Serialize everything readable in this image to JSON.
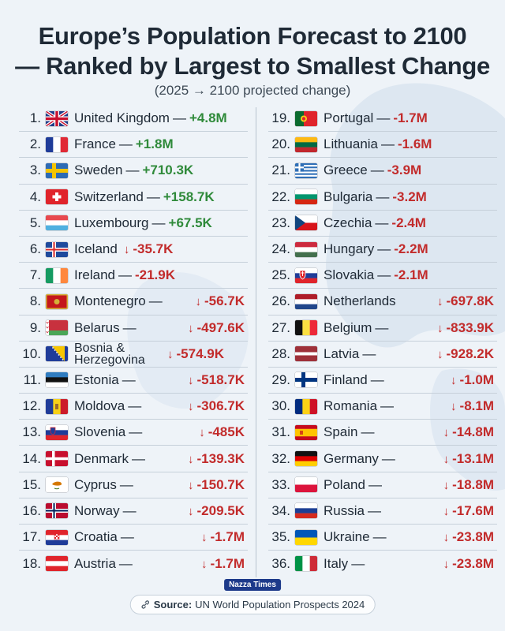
{
  "title_line1": "Europe’s Population Forecast to 2100",
  "title_line2": "— Ranked by Largest to Smallest Change",
  "subtitle": "(2025 → 2100 projected change)",
  "brand": "Nazza Times",
  "source_label": "Source:",
  "source_text": "UN World Population Prospects 2024",
  "colors": {
    "positive": "#2f8a3a",
    "negative": "#c22b2b",
    "title": "#1f2a36"
  },
  "chart_data": {
    "type": "table",
    "columns": [
      "rank",
      "country",
      "change"
    ],
    "rows": [
      {
        "rank": "1.",
        "country": "United Kingdom",
        "change": "+4.8M",
        "value": 4800000,
        "flag": "uk",
        "arrow": false,
        "sep": true
      },
      {
        "rank": "2.",
        "country": "France",
        "change": "+1.8M",
        "value": 1800000,
        "flag": "france",
        "arrow": false,
        "sep": true
      },
      {
        "rank": "3.",
        "country": "Sweden",
        "change": "+710.3K",
        "value": 710300,
        "flag": "sweden",
        "arrow": false,
        "sep": true
      },
      {
        "rank": "4.",
        "country": "Switzerland",
        "change": "+158.7K",
        "value": 158700,
        "flag": "switzerland",
        "arrow": false,
        "sep": true
      },
      {
        "rank": "5.",
        "country": "Luxembourg",
        "change": "+67.5K",
        "value": 67500,
        "flag": "luxembourg",
        "arrow": false,
        "sep": true
      },
      {
        "rank": "6.",
        "country": "Iceland",
        "change": "-35.7K",
        "value": -35700,
        "flag": "iceland",
        "arrow": true,
        "sep": false
      },
      {
        "rank": "7.",
        "country": "Ireland",
        "change": "-21.9K",
        "value": -21900,
        "flag": "ireland",
        "arrow": false,
        "sep": true
      },
      {
        "rank": "8.",
        "country": "Montenegro",
        "change": "-56.7K",
        "value": -56700,
        "flag": "montenegro",
        "arrow": true,
        "sep": true
      },
      {
        "rank": "9.",
        "country": "Belarus",
        "change": "-497.6K",
        "value": -497600,
        "flag": "belarus",
        "arrow": true,
        "sep": true
      },
      {
        "rank": "10.",
        "country": "Bosnia & Herzegovina",
        "change": "-574.9K",
        "value": -574900,
        "flag": "bosnia",
        "arrow": true,
        "sep": false
      },
      {
        "rank": "11.",
        "country": "Estonia",
        "change": "-518.7K",
        "value": -518700,
        "flag": "estonia",
        "arrow": true,
        "sep": true
      },
      {
        "rank": "12.",
        "country": "Moldova",
        "change": "-306.7K",
        "value": -306700,
        "flag": "moldova",
        "arrow": true,
        "sep": true
      },
      {
        "rank": "13.",
        "country": "Slovenia",
        "change": "-485K",
        "value": -485000,
        "flag": "slovenia",
        "arrow": true,
        "sep": true
      },
      {
        "rank": "14.",
        "country": "Denmark",
        "change": "-139.3K",
        "value": -139300,
        "flag": "denmark",
        "arrow": true,
        "sep": true
      },
      {
        "rank": "15.",
        "country": "Cyprus",
        "change": "-150.7K",
        "value": -150700,
        "flag": "cyprus",
        "arrow": true,
        "sep": true
      },
      {
        "rank": "16.",
        "country": "Norway",
        "change": "-209.5K",
        "value": -209500,
        "flag": "norway",
        "arrow": true,
        "sep": true
      },
      {
        "rank": "17.",
        "country": "Croatia",
        "change": "-1.7M",
        "value": -1700000,
        "flag": "croatia",
        "arrow": true,
        "sep": true
      },
      {
        "rank": "18.",
        "country": "Austria",
        "change": "-1.7M",
        "value": -1700000,
        "flag": "austria",
        "arrow": true,
        "sep": true
      },
      {
        "rank": "19.",
        "country": "Portugal",
        "change": "-1.7M",
        "value": -1700000,
        "flag": "portugal",
        "arrow": false,
        "sep": true
      },
      {
        "rank": "20.",
        "country": "Lithuania",
        "change": "-1.6M",
        "value": -1600000,
        "flag": "lithuania",
        "arrow": false,
        "sep": true
      },
      {
        "rank": "21.",
        "country": "Greece",
        "change": "-3.9M",
        "value": -3900000,
        "flag": "greece",
        "arrow": false,
        "sep": true
      },
      {
        "rank": "22.",
        "country": "Bulgaria",
        "change": "-3.2M",
        "value": -3200000,
        "flag": "bulgaria",
        "arrow": false,
        "sep": true
      },
      {
        "rank": "23.",
        "country": "Czechia",
        "change": "-2.4M",
        "value": -2400000,
        "flag": "czechia",
        "arrow": false,
        "sep": true
      },
      {
        "rank": "24.",
        "country": "Hungary",
        "change": "-2.2M",
        "value": -2200000,
        "flag": "hungary",
        "arrow": false,
        "sep": true
      },
      {
        "rank": "25.",
        "country": "Slovakia",
        "change": "-2.1M",
        "value": -2100000,
        "flag": "slovakia",
        "arrow": false,
        "sep": true
      },
      {
        "rank": "26.",
        "country": "Netherlands",
        "change": "-697.8K",
        "value": -697800,
        "flag": "netherlands",
        "arrow": true,
        "sep": false
      },
      {
        "rank": "27.",
        "country": "Belgium",
        "change": "-833.9K",
        "value": -833900,
        "flag": "belgium",
        "arrow": true,
        "sep": true
      },
      {
        "rank": "28.",
        "country": "Latvia",
        "change": "-928.2K",
        "value": -928200,
        "flag": "latvia",
        "arrow": true,
        "sep": true
      },
      {
        "rank": "29.",
        "country": "Finland",
        "change": "-1.0M",
        "value": -1000000,
        "flag": "finland",
        "arrow": true,
        "sep": true
      },
      {
        "rank": "30.",
        "country": "Romania",
        "change": "-8.1M",
        "value": -8100000,
        "flag": "romania",
        "arrow": true,
        "sep": true
      },
      {
        "rank": "31.",
        "country": "Spain",
        "change": "-14.8M",
        "value": -14800000,
        "flag": "spain",
        "arrow": true,
        "sep": true
      },
      {
        "rank": "32.",
        "country": "Germany",
        "change": "-13.1M",
        "value": -13100000,
        "flag": "germany",
        "arrow": true,
        "sep": true
      },
      {
        "rank": "33.",
        "country": "Poland",
        "change": "-18.8M",
        "value": -18800000,
        "flag": "poland",
        "arrow": true,
        "sep": true
      },
      {
        "rank": "34.",
        "country": "Russia",
        "change": "-17.6M",
        "value": -17600000,
        "flag": "russia",
        "arrow": true,
        "sep": true
      },
      {
        "rank": "35.",
        "country": "Ukraine",
        "change": "-23.8M",
        "value": -23800000,
        "flag": "ukraine",
        "arrow": true,
        "sep": true
      },
      {
        "rank": "36.",
        "country": "Italy",
        "change": "-23.8M",
        "value": -23800000,
        "flag": "italy",
        "arrow": true,
        "sep": true
      }
    ]
  }
}
